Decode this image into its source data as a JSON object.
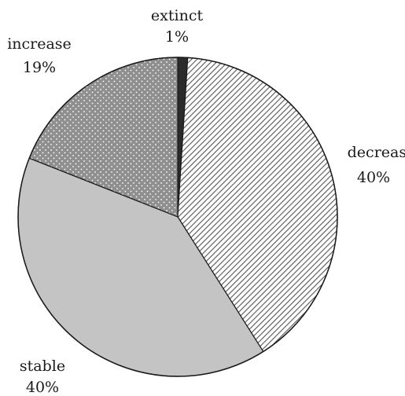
{
  "chart_data": {
    "type": "pie",
    "title": "",
    "slices": [
      {
        "label": "extinct",
        "value": 1,
        "value_label": "1%",
        "fill": "#2b2b2b",
        "pattern": "solid"
      },
      {
        "label": "decrease",
        "value": 40,
        "value_label": "40%",
        "fill": "#ffffff",
        "pattern": "diagonal-hatch"
      },
      {
        "label": "stable",
        "value": 40,
        "value_label": "40%",
        "fill": "#c4c4c4",
        "pattern": "solid"
      },
      {
        "label": "increase",
        "value": 19,
        "value_label": "19%",
        "fill": "#8f8f8f",
        "pattern": "dotted"
      }
    ],
    "start_angle_deg": 0,
    "direction": "clockwise",
    "legend": "none",
    "stroke_color": "#1a1a1a"
  }
}
